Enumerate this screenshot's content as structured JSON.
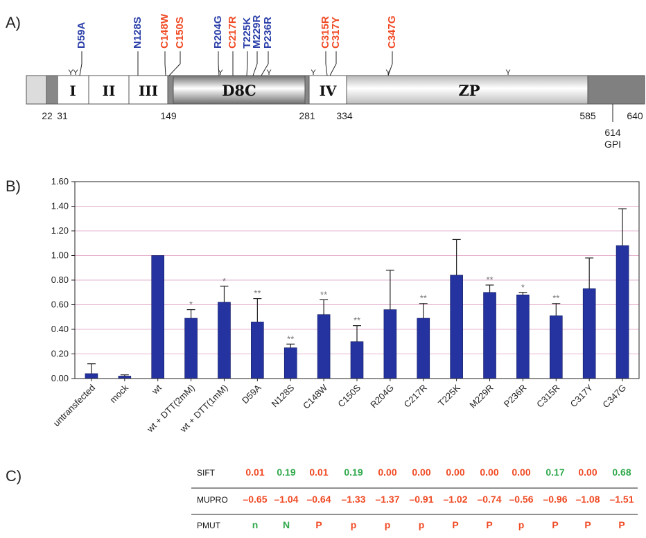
{
  "panel_a": {
    "letter": "A)",
    "domains": [
      {
        "label": "I",
        "start": 31,
        "end": 50
      },
      {
        "label": "II",
        "start": 50,
        "end": 70
      },
      {
        "label": "III",
        "start": 70,
        "end": 149
      },
      {
        "label": "D8C",
        "start": 149,
        "end": 281
      },
      {
        "label": "IV",
        "start": 281,
        "end": 334
      },
      {
        "label": "ZP",
        "start": 334,
        "end": 585
      }
    ],
    "positions": [
      "22",
      "31",
      "149",
      "281",
      "334",
      "585",
      "640"
    ],
    "gpi": {
      "position": "614",
      "label": "GPI"
    },
    "mutations": [
      {
        "label": "D59A",
        "color": "#2a3ea8"
      },
      {
        "label": "N128S",
        "color": "#2a3ea8"
      },
      {
        "label": "C148W",
        "color": "#f04a24"
      },
      {
        "label": "C150S",
        "color": "#f04a24"
      },
      {
        "label": "R204G",
        "color": "#2a3ea8"
      },
      {
        "label": "C217R",
        "color": "#f04a24"
      },
      {
        "label": "T225K",
        "color": "#2a3ea8"
      },
      {
        "label": "M229R",
        "color": "#2a3ea8"
      },
      {
        "label": "P236R",
        "color": "#2a3ea8"
      },
      {
        "label": "C315R",
        "color": "#f04a24"
      },
      {
        "label": "C317Y",
        "color": "#f04a24"
      },
      {
        "label": "C347G",
        "color": "#f04a24"
      }
    ],
    "glycosylation_symbol": "Y"
  },
  "chart_data": {
    "type": "bar",
    "panel_letter": "B)",
    "categories": [
      "untransfected",
      "mock",
      "wt",
      "wt + DTT(2mM)",
      "wt + DTT(1mM)",
      "D59A",
      "N128S",
      "C148W",
      "C150S",
      "R204G",
      "C217R",
      "T225K",
      "M229R",
      "P236R",
      "C315R",
      "C317Y",
      "C347G"
    ],
    "values": [
      0.04,
      0.02,
      1.0,
      0.49,
      0.62,
      0.46,
      0.25,
      0.52,
      0.3,
      0.56,
      0.49,
      0.84,
      0.7,
      0.68,
      0.51,
      0.73,
      1.08
    ],
    "errors": [
      0.08,
      0.01,
      0.0,
      0.07,
      0.13,
      0.19,
      0.03,
      0.12,
      0.13,
      0.32,
      0.12,
      0.29,
      0.06,
      0.02,
      0.1,
      0.25,
      0.3
    ],
    "significance": [
      "",
      "",
      "",
      "*",
      "*",
      "**",
      "**",
      "**",
      "**",
      "",
      "**",
      "",
      "**",
      "*",
      "**",
      "",
      ""
    ],
    "ylim": [
      0,
      1.6
    ],
    "yticks": [
      "0.00",
      "0.20",
      "0.40",
      "0.60",
      "0.80",
      "1.00",
      "1.20",
      "1.40",
      "1.60"
    ],
    "bar_color": "#2433a0",
    "grid_color": "#e6b3cf",
    "grid": true
  },
  "panel_c": {
    "letter": "C)",
    "rows": [
      {
        "label": "SIFT",
        "values": [
          {
            "text": "0.01",
            "color": "#f04a24"
          },
          {
            "text": "0.19",
            "color": "#2fa84a"
          },
          {
            "text": "0.01",
            "color": "#f04a24"
          },
          {
            "text": "0.19",
            "color": "#2fa84a"
          },
          {
            "text": "0.00",
            "color": "#f04a24"
          },
          {
            "text": "0.00",
            "color": "#f04a24"
          },
          {
            "text": "0.00",
            "color": "#f04a24"
          },
          {
            "text": "0.00",
            "color": "#f04a24"
          },
          {
            "text": "0.00",
            "color": "#f04a24"
          },
          {
            "text": "0.17",
            "color": "#2fa84a"
          },
          {
            "text": "0.00",
            "color": "#f04a24"
          },
          {
            "text": "0.68",
            "color": "#2fa84a"
          }
        ]
      },
      {
        "label": "MUPRO",
        "values": [
          {
            "text": "–0.65",
            "color": "#f04a24"
          },
          {
            "text": "–1.04",
            "color": "#f04a24"
          },
          {
            "text": "–0.64",
            "color": "#f04a24"
          },
          {
            "text": "–1.33",
            "color": "#f04a24"
          },
          {
            "text": "–1.37",
            "color": "#f04a24"
          },
          {
            "text": "–0.91",
            "color": "#f04a24"
          },
          {
            "text": "–1.02",
            "color": "#f04a24"
          },
          {
            "text": "–0.74",
            "color": "#f04a24"
          },
          {
            "text": "–0.56",
            "color": "#f04a24"
          },
          {
            "text": "–0.96",
            "color": "#f04a24"
          },
          {
            "text": "–1.08",
            "color": "#f04a24"
          },
          {
            "text": "–1.51",
            "color": "#f04a24"
          }
        ]
      },
      {
        "label": "PMUT",
        "values": [
          {
            "text": "n",
            "color": "#2fa84a"
          },
          {
            "text": "N",
            "color": "#2fa84a"
          },
          {
            "text": "P",
            "color": "#f04a24"
          },
          {
            "text": "p",
            "color": "#f04a24"
          },
          {
            "text": "p",
            "color": "#f04a24"
          },
          {
            "text": "p",
            "color": "#f04a24"
          },
          {
            "text": "P",
            "color": "#f04a24"
          },
          {
            "text": "P",
            "color": "#f04a24"
          },
          {
            "text": "p",
            "color": "#f04a24"
          },
          {
            "text": "P",
            "color": "#f04a24"
          },
          {
            "text": "P",
            "color": "#f04a24"
          },
          {
            "text": "P",
            "color": "#f04a24"
          }
        ]
      }
    ]
  }
}
